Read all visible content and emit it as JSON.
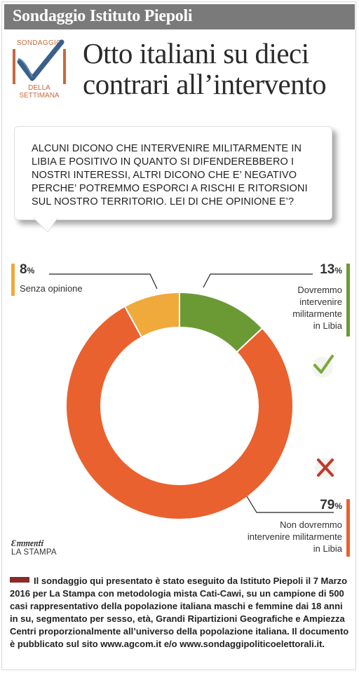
{
  "header": {
    "title": "Sondaggio Istituto Piepoli"
  },
  "logo": {
    "top_text": "SONDAGGIO",
    "bottom_line1": "DELLA",
    "bottom_line2": "SETTIMANA",
    "color": "#c8693a",
    "check_color": "#3a5f8a"
  },
  "headline": {
    "line1": "Otto italiani su dieci",
    "line2": "contrari all’intervento"
  },
  "question": "ALCUNI DICONO CHE INTERVENIRE MILITARMENTE IN LIBIA E POSITIVO IN QUANTO SI DIFENDEREBBERO I NOSTRI INTERESSI, ALTRI DICONO CHE E’ NEGATIVO PERCHE’ POTREMMO ESPORCI A RISCHI E RITORSIONI SUL NOSTRO TERRITORIO. LEI DI CHE OPINIONE E’?",
  "chart_data": {
    "type": "pie",
    "style": "donut",
    "categories": [
      "Dovremmo intervenire militarmente in Libia",
      "Non dovremmo intervenire militarmente in Libia",
      "Senza opinione"
    ],
    "values": [
      13,
      79,
      8
    ],
    "colors": [
      "#6b9a35",
      "#e9612e",
      "#f0a93b"
    ],
    "labels": [
      {
        "value": "13",
        "unit": "%",
        "lines": [
          "Dovremmo",
          "intervenire",
          "militarmente",
          "in Libia"
        ]
      },
      {
        "value": "79",
        "unit": "%",
        "lines": [
          "Non dovremmo",
          "intervenire militarmente",
          "in Libia"
        ]
      },
      {
        "value": "8",
        "unit": "%",
        "lines": [
          "Senza opinione"
        ]
      }
    ]
  },
  "brand": {
    "name": "LA STAMPA"
  },
  "footnote": "Il sondaggio qui presentato è stato eseguito da Istituto Piepoli il 7 Marzo 2016 per La Stampa con metodologia mista Cati-Cawi, su un campione di 500 casi rappresentativo della popolazione italiana maschi e femmine dai 18 anni in su, segmentato per sesso, età, Grandi Ripartizioni Geografiche e Ampiezza Centri proporzionalmente all’universo della popolazione italiana. Il documento è pubblicato sul sito www.agcom.it e/o www.sondaggipoliticoelettorali.it."
}
